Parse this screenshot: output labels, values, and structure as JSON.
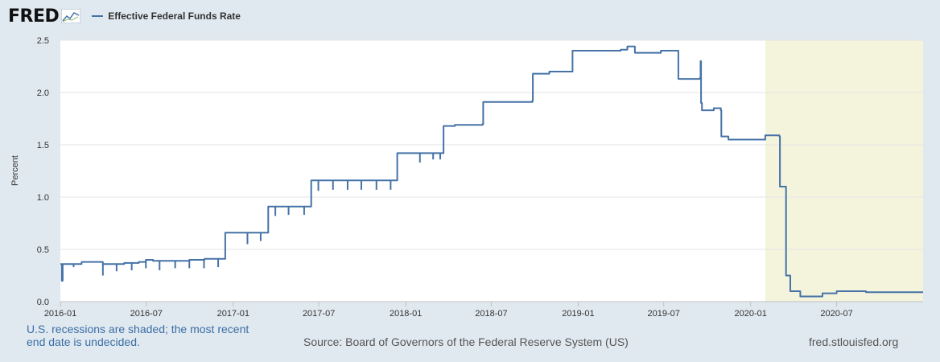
{
  "header": {
    "logo_text": "FRED",
    "logo_icon": "chart-line-icon",
    "legend_label": "Effective Federal Funds Rate"
  },
  "colors": {
    "background": "#e1e9f0",
    "plot_background": "#ffffff",
    "line": "#4572a7",
    "recession_shade": "#f4f3dc",
    "note_text": "#3a6ea5"
  },
  "footer": {
    "note": "U.S. recessions are shaded; the most recent end date is undecided.",
    "source": "Source: Board of Governors of the Federal Reserve System (US)",
    "site": "fred.stlouisfed.org"
  },
  "chart_data": {
    "type": "line",
    "title": "",
    "xlabel": "",
    "ylabel": "Percent",
    "x_range": [
      "2016-01-01",
      "2020-12-31"
    ],
    "ylim": [
      0,
      2.5
    ],
    "y_ticks": [
      "0.0",
      "0.5",
      "1.0",
      "1.5",
      "2.0",
      "2.5"
    ],
    "x_ticks": [
      {
        "date": "2016-01-01",
        "label": "2016-01"
      },
      {
        "date": "2016-07-01",
        "label": "2016-07"
      },
      {
        "date": "2017-01-01",
        "label": "2017-01"
      },
      {
        "date": "2017-07-01",
        "label": "2017-07"
      },
      {
        "date": "2018-01-01",
        "label": "2018-01"
      },
      {
        "date": "2018-07-01",
        "label": "2018-07"
      },
      {
        "date": "2019-01-01",
        "label": "2019-01"
      },
      {
        "date": "2019-07-01",
        "label": "2019-07"
      },
      {
        "date": "2020-01-01",
        "label": "2020-01"
      },
      {
        "date": "2020-07-01",
        "label": "2020-07"
      }
    ],
    "grid": "horizontal",
    "recession": {
      "start": "2020-02-01",
      "end": "2020-12-31"
    },
    "series": [
      {
        "name": "Effective Federal Funds Rate",
        "points": [
          [
            "2016-01-01",
            0.36
          ],
          [
            "2016-01-04",
            0.2
          ],
          [
            "2016-01-06",
            0.36
          ],
          [
            "2016-02-15",
            0.38
          ],
          [
            "2016-03-31",
            0.36
          ],
          [
            "2016-05-15",
            0.37
          ],
          [
            "2016-06-15",
            0.38
          ],
          [
            "2016-06-30",
            0.4
          ],
          [
            "2016-07-15",
            0.39
          ],
          [
            "2016-09-30",
            0.4
          ],
          [
            "2016-11-01",
            0.41
          ],
          [
            "2016-12-14",
            0.41
          ],
          [
            "2016-12-15",
            0.66
          ],
          [
            "2017-03-15",
            0.66
          ],
          [
            "2017-03-16",
            0.91
          ],
          [
            "2017-06-14",
            0.91
          ],
          [
            "2017-06-15",
            1.16
          ],
          [
            "2017-12-13",
            1.16
          ],
          [
            "2017-12-14",
            1.42
          ],
          [
            "2018-03-21",
            1.42
          ],
          [
            "2018-03-22",
            1.68
          ],
          [
            "2018-04-15",
            1.69
          ],
          [
            "2018-06-13",
            1.7
          ],
          [
            "2018-06-14",
            1.91
          ],
          [
            "2018-09-26",
            1.92
          ],
          [
            "2018-09-27",
            2.18
          ],
          [
            "2018-11-01",
            2.2
          ],
          [
            "2018-12-19",
            2.2
          ],
          [
            "2018-12-20",
            2.4
          ],
          [
            "2019-04-01",
            2.41
          ],
          [
            "2019-04-15",
            2.44
          ],
          [
            "2019-05-01",
            2.38
          ],
          [
            "2019-06-01",
            2.38
          ],
          [
            "2019-06-25",
            2.4
          ],
          [
            "2019-07-31",
            2.4
          ],
          [
            "2019-08-01",
            2.13
          ],
          [
            "2019-09-16",
            2.14
          ],
          [
            "2019-09-17",
            2.3
          ],
          [
            "2019-09-18",
            1.9
          ],
          [
            "2019-09-20",
            1.83
          ],
          [
            "2019-10-15",
            1.85
          ],
          [
            "2019-10-30",
            1.83
          ],
          [
            "2019-10-31",
            1.58
          ],
          [
            "2019-11-15",
            1.55
          ],
          [
            "2019-12-31",
            1.55
          ],
          [
            "2020-01-30",
            1.55
          ],
          [
            "2020-02-01",
            1.59
          ],
          [
            "2020-03-02",
            1.58
          ],
          [
            "2020-03-03",
            1.1
          ],
          [
            "2020-03-15",
            1.1
          ],
          [
            "2020-03-16",
            0.25
          ],
          [
            "2020-03-25",
            0.1
          ],
          [
            "2020-04-15",
            0.05
          ],
          [
            "2020-05-01",
            0.05
          ],
          [
            "2020-06-01",
            0.08
          ],
          [
            "2020-07-01",
            0.1
          ],
          [
            "2020-09-01",
            0.09
          ],
          [
            "2020-12-31",
            0.09
          ]
        ]
      }
    ],
    "dips": [
      [
        "2016-01-29",
        0.33
      ],
      [
        "2016-03-31",
        0.25
      ],
      [
        "2016-04-29",
        0.29
      ],
      [
        "2016-05-31",
        0.3
      ],
      [
        "2016-06-30",
        0.32
      ],
      [
        "2016-07-29",
        0.3
      ],
      [
        "2016-08-31",
        0.32
      ],
      [
        "2016-09-30",
        0.32
      ],
      [
        "2016-10-31",
        0.32
      ],
      [
        "2016-11-30",
        0.33
      ],
      [
        "2017-01-31",
        0.55
      ],
      [
        "2017-02-28",
        0.58
      ],
      [
        "2017-03-31",
        0.82
      ],
      [
        "2017-04-28",
        0.83
      ],
      [
        "2017-05-31",
        0.83
      ],
      [
        "2017-06-30",
        1.06
      ],
      [
        "2017-07-31",
        1.07
      ],
      [
        "2017-08-31",
        1.07
      ],
      [
        "2017-09-29",
        1.07
      ],
      [
        "2017-10-31",
        1.07
      ],
      [
        "2017-11-30",
        1.07
      ],
      [
        "2018-01-31",
        1.33
      ],
      [
        "2018-02-28",
        1.36
      ],
      [
        "2018-03-15",
        1.36
      ]
    ]
  }
}
